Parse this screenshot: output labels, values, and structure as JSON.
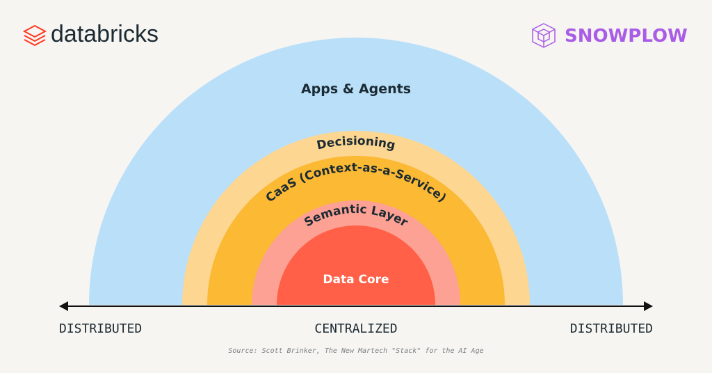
{
  "logos": {
    "left": "databricks",
    "right": "SNOWPLOW"
  },
  "layers": [
    {
      "label": "Apps & Agents",
      "color": "#b9dff9"
    },
    {
      "label": "Decisioning",
      "color": "#fdd691"
    },
    {
      "label": "CaaS (Context-as-a-Service)",
      "color": "#fbb934"
    },
    {
      "label": "Semantic Layer",
      "color": "#fca193"
    },
    {
      "label": "Data Core",
      "color": "#ff6047"
    }
  ],
  "axis": {
    "left": "DISTRIBUTED",
    "center": "CENTRALIZED",
    "right": "DISTRIBUTED"
  },
  "source": "Source: Scott Brinker, The New Martech \"Stack\" for the AI Age",
  "colors": {
    "background": "#f7f5f1",
    "databricks": "#ff3621",
    "snowplow": "#a95de6",
    "text": "#1b2a33"
  }
}
